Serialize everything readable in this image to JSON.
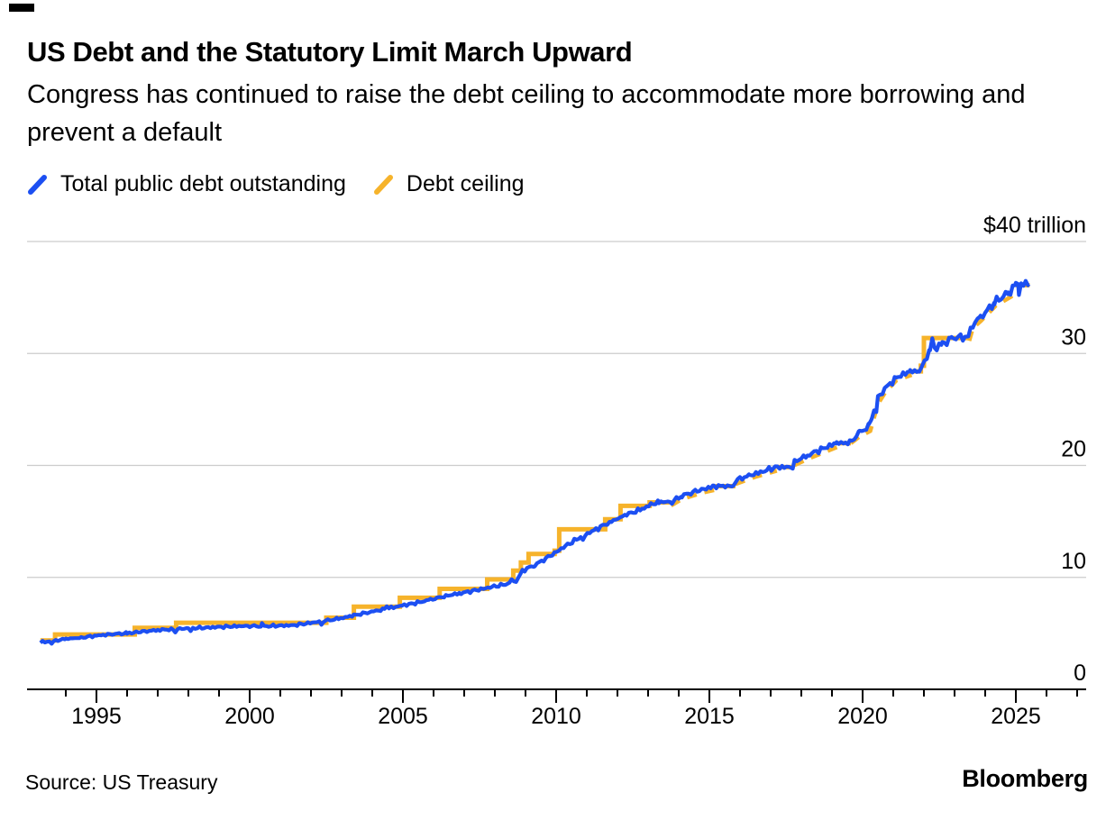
{
  "page": {
    "title": "US Debt and the Statutory Limit March Upward",
    "subtitle": "Congress has continued to raise the debt ceiling to accommodate more borrowing and prevent a default",
    "source": "Source: US Treasury",
    "brand": "Bloomberg"
  },
  "legend": [
    {
      "label": "Total public debt outstanding",
      "color": "#1c4ff2"
    },
    {
      "label": "Debt ceiling",
      "color": "#f6b32b"
    }
  ],
  "chart_data": {
    "type": "line",
    "title": "US Debt and the Statutory Limit March Upward",
    "unit": "trillions of US dollars",
    "y_axis": {
      "top_label": "$40 trillion",
      "tick_labels": [
        "0",
        "10",
        "20",
        "30"
      ],
      "gridline_values": [
        0,
        10,
        20,
        30,
        40
      ],
      "range": [
        0,
        40
      ],
      "labels_position": "right"
    },
    "x_axis": {
      "major_tick_labels": [
        "1995",
        "2000",
        "2005",
        "2010",
        "2015",
        "2020",
        "2025"
      ],
      "major_tick_years": [
        1995,
        2000,
        2005,
        2010,
        2015,
        2020,
        2025
      ],
      "minor_tick_step_years": 1,
      "minor_tick_first_year": 1994,
      "minor_tick_last_year": 2027,
      "range": [
        1992.7,
        2027.3
      ]
    },
    "grid": "horizontal-only",
    "legend_position": "top-left",
    "series": [
      {
        "name": "Total public debt outstanding",
        "color": "#1c4ff2",
        "style": "solid-noisy",
        "points": [
          [
            1993.17,
            4.2
          ],
          [
            1993.6,
            4.32
          ],
          [
            1994,
            4.5
          ],
          [
            1994.5,
            4.62
          ],
          [
            1995,
            4.8
          ],
          [
            1995.6,
            4.95
          ],
          [
            1996,
            5.0
          ],
          [
            1996.5,
            5.15
          ],
          [
            1997,
            5.3
          ],
          [
            1997.5,
            5.37
          ],
          [
            1998,
            5.45
          ],
          [
            1998.5,
            5.5
          ],
          [
            1999,
            5.57
          ],
          [
            1999.5,
            5.63
          ],
          [
            2000,
            5.67
          ],
          [
            2000.4,
            5.62
          ],
          [
            2000.9,
            5.68
          ],
          [
            2001.4,
            5.72
          ],
          [
            2001.9,
            5.9
          ],
          [
            2002.4,
            6.1
          ],
          [
            2002.9,
            6.3
          ],
          [
            2003.4,
            6.6
          ],
          [
            2003.9,
            6.9
          ],
          [
            2004.4,
            7.15
          ],
          [
            2004.9,
            7.45
          ],
          [
            2005.4,
            7.7
          ],
          [
            2005.9,
            8.0
          ],
          [
            2006.4,
            8.35
          ],
          [
            2006.9,
            8.6
          ],
          [
            2007.4,
            8.85
          ],
          [
            2007.9,
            9.15
          ],
          [
            2008.4,
            9.4
          ],
          [
            2008.7,
            9.65
          ],
          [
            2008.9,
            10.6
          ],
          [
            2009.3,
            11.1
          ],
          [
            2009.8,
            11.9
          ],
          [
            2010.3,
            12.8
          ],
          [
            2010.8,
            13.6
          ],
          [
            2011.3,
            14.3
          ],
          [
            2011.8,
            15.0
          ],
          [
            2012.3,
            15.6
          ],
          [
            2012.8,
            16.1
          ],
          [
            2013.1,
            16.5
          ],
          [
            2013.35,
            16.74
          ],
          [
            2013.78,
            16.74
          ],
          [
            2014.1,
            17.3
          ],
          [
            2014.6,
            17.7
          ],
          [
            2015.15,
            18.15
          ],
          [
            2015.78,
            18.15
          ],
          [
            2015.85,
            18.65
          ],
          [
            2016.3,
            19.1
          ],
          [
            2016.8,
            19.5
          ],
          [
            2017.15,
            19.85
          ],
          [
            2017.72,
            19.85
          ],
          [
            2017.78,
            20.35
          ],
          [
            2018.2,
            20.9
          ],
          [
            2018.7,
            21.5
          ],
          [
            2019.15,
            22.0
          ],
          [
            2019.58,
            22.0
          ],
          [
            2019.9,
            22.95
          ],
          [
            2020.2,
            23.45
          ],
          [
            2020.3,
            24.2
          ],
          [
            2020.5,
            26.1
          ],
          [
            2020.75,
            26.9
          ],
          [
            2021.1,
            27.85
          ],
          [
            2021.55,
            28.4
          ],
          [
            2021.85,
            28.4
          ],
          [
            2021.95,
            28.9
          ],
          [
            2022.2,
            30.3
          ],
          [
            2022.6,
            30.8
          ],
          [
            2022.9,
            31.35
          ],
          [
            2023.05,
            31.45
          ],
          [
            2023.45,
            31.45
          ],
          [
            2023.6,
            32.65
          ],
          [
            2023.85,
            33.2
          ],
          [
            2024.3,
            34.55
          ],
          [
            2024.75,
            35.4
          ],
          [
            2025.0,
            36.1
          ],
          [
            2025.1,
            36.2
          ],
          [
            2025.42,
            36.2
          ]
        ]
      },
      {
        "name": "Debt ceiling",
        "color": "#f6b32b",
        "style": "stepped-with-suspensions",
        "segments": [
          {
            "style": "solid",
            "points": [
              [
                1993.17,
                4.37
              ],
              [
                1993.65,
                4.37
              ],
              [
                1993.65,
                4.9
              ],
              [
                1996.25,
                4.9
              ],
              [
                1996.25,
                5.5
              ],
              [
                1997.6,
                5.5
              ],
              [
                1997.6,
                5.95
              ],
              [
                2002.5,
                5.95
              ],
              [
                2002.5,
                6.4
              ],
              [
                2003.4,
                6.4
              ],
              [
                2003.4,
                7.38
              ],
              [
                2004.9,
                7.38
              ],
              [
                2004.9,
                8.18
              ],
              [
                2006.2,
                8.18
              ],
              [
                2006.2,
                8.97
              ],
              [
                2007.75,
                8.97
              ],
              [
                2007.75,
                9.82
              ],
              [
                2008.6,
                9.82
              ],
              [
                2008.6,
                10.61
              ],
              [
                2008.85,
                10.61
              ],
              [
                2008.85,
                11.32
              ],
              [
                2009.1,
                11.32
              ],
              [
                2009.1,
                12.1
              ],
              [
                2009.95,
                12.1
              ],
              [
                2009.95,
                12.39
              ],
              [
                2010.1,
                12.39
              ],
              [
                2010.1,
                14.29
              ],
              [
                2011.6,
                14.29
              ],
              [
                2011.6,
                15.19
              ],
              [
                2012.1,
                15.19
              ],
              [
                2012.1,
                16.39
              ],
              [
                2013.05,
                16.39
              ],
              [
                2013.05,
                16.7
              ],
              [
                2013.75,
                16.7
              ]
            ]
          },
          {
            "style": "dashed",
            "points": [
              [
                2013.75,
                16.74
              ],
              [
                2014.1,
                17.3
              ],
              [
                2014.8,
                17.9
              ],
              [
                2015.2,
                18.15
              ]
            ]
          },
          {
            "style": "solid",
            "points": [
              [
                2015.2,
                18.15
              ],
              [
                2015.85,
                18.15
              ]
            ]
          },
          {
            "style": "dashed",
            "points": [
              [
                2015.85,
                18.65
              ],
              [
                2016.5,
                19.3
              ],
              [
                2017.2,
                19.85
              ]
            ]
          },
          {
            "style": "solid",
            "points": [
              [
                2017.2,
                19.85
              ],
              [
                2017.78,
                19.85
              ]
            ]
          },
          {
            "style": "dashed",
            "points": [
              [
                2017.78,
                20.35
              ],
              [
                2018.3,
                21.0
              ],
              [
                2019.2,
                21.99
              ]
            ]
          },
          {
            "style": "solid",
            "points": [
              [
                2019.2,
                21.99
              ],
              [
                2019.62,
                21.99
              ]
            ]
          },
          {
            "style": "dashed",
            "points": [
              [
                2019.62,
                22.3
              ],
              [
                2019.9,
                22.9
              ],
              [
                2020.25,
                23.4
              ],
              [
                2020.5,
                25.8
              ],
              [
                2020.75,
                26.9
              ],
              [
                2021.1,
                27.9
              ],
              [
                2021.6,
                28.4
              ]
            ]
          },
          {
            "style": "solid",
            "points": [
              [
                2021.6,
                28.4
              ],
              [
                2021.9,
                28.4
              ],
              [
                2021.9,
                28.9
              ],
              [
                2022.0,
                28.9
              ],
              [
                2022.0,
                31.38
              ],
              [
                2023.48,
                31.38
              ]
            ]
          },
          {
            "style": "dashed",
            "points": [
              [
                2023.48,
                31.45
              ],
              [
                2023.6,
                32.6
              ],
              [
                2023.85,
                33.2
              ],
              [
                2024.35,
                34.6
              ],
              [
                2024.85,
                35.4
              ],
              [
                2025.0,
                36.05
              ]
            ]
          },
          {
            "style": "solid",
            "points": [
              [
                2025.0,
                36.1
              ],
              [
                2025.45,
                36.1
              ]
            ]
          }
        ]
      }
    ]
  },
  "colors": {
    "debt_line": "#1c4ff2",
    "ceiling_line": "#f6b32b",
    "gridline": "#cccccc",
    "axis": "#000000",
    "text": "#000000",
    "background": "#ffffff"
  }
}
